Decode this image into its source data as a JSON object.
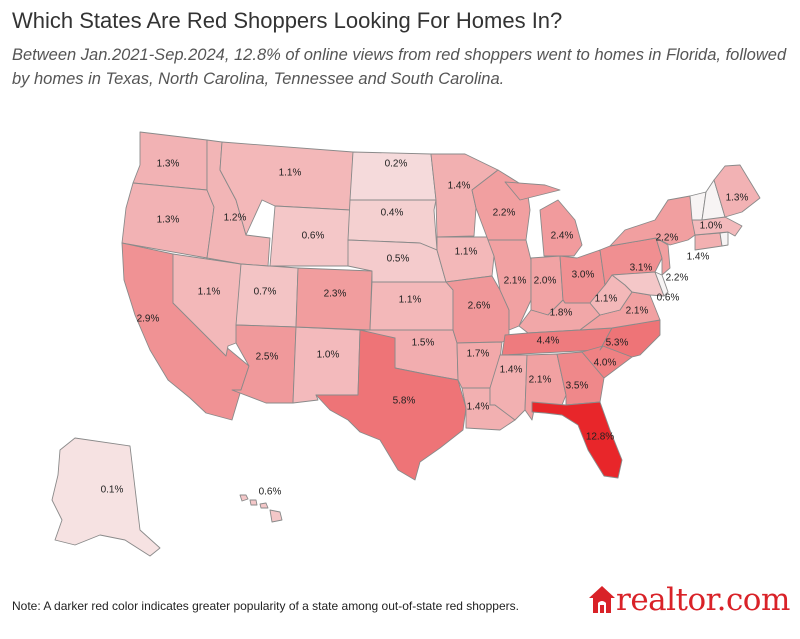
{
  "header": {
    "title": "Which States Are Red Shoppers Looking For Homes In?",
    "subtitle": "Between Jan.2021-Sep.2024, 12.8% of online views from red shoppers went to homes in Florida, followed by homes in Texas, North Carolina, Tennessee and  South Carolina."
  },
  "colors": {
    "base": "#f7f4f4",
    "max": "#e8262a",
    "border": "#8a8a8a"
  },
  "map_data": {
    "metric": "share of online views from red shoppers",
    "period": "Jan.2021-Sep.2024",
    "states": [
      {
        "state": "WA",
        "label": "1.3%",
        "value": 1.3
      },
      {
        "state": "OR",
        "label": "1.3%",
        "value": 1.3
      },
      {
        "state": "CA",
        "label": "2.9%",
        "value": 2.9
      },
      {
        "state": "NV",
        "label": "1.1%",
        "value": 1.1
      },
      {
        "state": "ID",
        "label": "1.2%",
        "value": 1.2
      },
      {
        "state": "MT",
        "label": "1.1%",
        "value": 1.1
      },
      {
        "state": "WY",
        "label": "0.6%",
        "value": 0.6
      },
      {
        "state": "UT",
        "label": "0.7%",
        "value": 0.7
      },
      {
        "state": "AZ",
        "label": "2.5%",
        "value": 2.5
      },
      {
        "state": "NM",
        "label": "1.0%",
        "value": 1.0
      },
      {
        "state": "CO",
        "label": "2.3%",
        "value": 2.3
      },
      {
        "state": "ND",
        "label": "0.2%",
        "value": 0.2
      },
      {
        "state": "SD",
        "label": "0.4%",
        "value": 0.4
      },
      {
        "state": "NE",
        "label": "0.5%",
        "value": 0.5
      },
      {
        "state": "KS",
        "label": "1.1%",
        "value": 1.1
      },
      {
        "state": "OK",
        "label": "1.5%",
        "value": 1.5
      },
      {
        "state": "TX",
        "label": "5.8%",
        "value": 5.8
      },
      {
        "state": "MN",
        "label": "1.4%",
        "value": 1.4
      },
      {
        "state": "IA",
        "label": "1.1%",
        "value": 1.1
      },
      {
        "state": "MO",
        "label": "2.6%",
        "value": 2.6
      },
      {
        "state": "AR",
        "label": "1.7%",
        "value": 1.7
      },
      {
        "state": "LA",
        "label": "1.4%",
        "value": 1.4
      },
      {
        "state": "WI",
        "label": "2.2%",
        "value": 2.2
      },
      {
        "state": "IL",
        "label": "2.1%",
        "value": 2.1
      },
      {
        "state": "MI",
        "label": "2.4%",
        "value": 2.4
      },
      {
        "state": "IN",
        "label": "2.0%",
        "value": 2.0
      },
      {
        "state": "OH",
        "label": "3.0%",
        "value": 3.0
      },
      {
        "state": "KY",
        "label": "1.8%",
        "value": 1.8
      },
      {
        "state": "TN",
        "label": "4.4%",
        "value": 4.4
      },
      {
        "state": "MS",
        "label": "1.4%",
        "value": 1.4
      },
      {
        "state": "AL",
        "label": "2.1%",
        "value": 2.1
      },
      {
        "state": "GA",
        "label": "3.5%",
        "value": 3.5
      },
      {
        "state": "FL",
        "label": "12.8%",
        "value": 12.8
      },
      {
        "state": "SC",
        "label": "4.0%",
        "value": 4.0
      },
      {
        "state": "NC",
        "label": "5.3%",
        "value": 5.3
      },
      {
        "state": "VA",
        "label": "2.1%",
        "value": 2.1
      },
      {
        "state": "WV",
        "label": "1.1%",
        "value": 1.1
      },
      {
        "state": "PA",
        "label": "3.1%",
        "value": 3.1
      },
      {
        "state": "NY",
        "label": "2.2%",
        "value": 2.2
      },
      {
        "state": "NJ",
        "label": "2.2%",
        "value": 2.2
      },
      {
        "state": "MD",
        "label": "0.6%",
        "value": 0.6
      },
      {
        "state": "CT",
        "label": "1.4%",
        "value": 1.4
      },
      {
        "state": "MA",
        "label": "1.0%",
        "value": 1.0
      },
      {
        "state": "ME",
        "label": "1.3%",
        "value": 1.3
      },
      {
        "state": "AK",
        "label": "0.1%",
        "value": 0.1
      },
      {
        "state": "HI",
        "label": "0.6%",
        "value": 0.6
      },
      {
        "state": "VT",
        "label": "",
        "value": null
      },
      {
        "state": "NH",
        "label": "",
        "value": null
      },
      {
        "state": "RI",
        "label": "",
        "value": null
      },
      {
        "state": "DE",
        "label": "",
        "value": null
      }
    ]
  },
  "footer": {
    "note": "Note: A darker red color indicates greater popularity of a state among out-of-state red shoppers.",
    "logo_text": "realtor.com"
  }
}
